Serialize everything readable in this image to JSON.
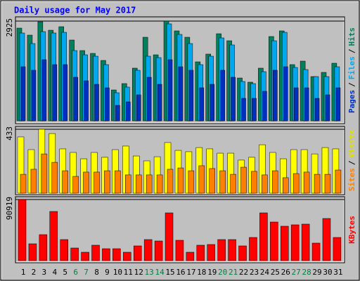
{
  "title": "Daily usage for May 2017",
  "categories": [
    "1",
    "2",
    "3",
    "4",
    "5",
    "6",
    "7",
    "8",
    "9",
    "10",
    "11",
    "12",
    "13",
    "14",
    "15",
    "16",
    "17",
    "18",
    "19",
    "20",
    "21",
    "22",
    "23",
    "24",
    "25",
    "26",
    "27",
    "28",
    "29",
    "30",
    "31"
  ],
  "category_colors": [
    "#000000",
    "#000000",
    "#000000",
    "#000000",
    "#000000",
    "#008040",
    "#008040",
    "#000000",
    "#000000",
    "#000000",
    "#000000",
    "#000000",
    "#008040",
    "#008040",
    "#000000",
    "#000000",
    "#000000",
    "#000000",
    "#000000",
    "#008040",
    "#008040",
    "#000000",
    "#000000",
    "#000000",
    "#000000",
    "#000000",
    "#008040",
    "#008040",
    "#000000",
    "#000000",
    "#000000"
  ],
  "chart_data": [
    {
      "type": "bar",
      "legend_separator": "/",
      "ylim": [
        0,
        2925
      ],
      "yticks": [
        2925
      ],
      "series": [
        {
          "name": "Hits",
          "color": "#00805c",
          "values": [
            2719,
            2513,
            2904,
            2657,
            2760,
            2369,
            2060,
            1977,
            1771,
            906,
            1092,
            1545,
            2451,
            1936,
            2925,
            2637,
            2451,
            1730,
            1957,
            2554,
            2348,
            1256,
            1133,
            1545,
            2472,
            2637,
            1648,
            1751,
            1298,
            1421,
            1689
          ]
        },
        {
          "name": "Files",
          "color": "#00a8f0",
          "values": [
            2575,
            2266,
            2616,
            2575,
            2595,
            2060,
            1936,
            1895,
            1648,
            824,
            989,
            1483,
            1895,
            1854,
            2843,
            2534,
            2266,
            1648,
            1895,
            2431,
            2225,
            1154,
            1092,
            1442,
            2348,
            2595,
            1565,
            1504,
            1298,
            1298,
            1586
          ]
        },
        {
          "name": "Pages",
          "color": "#0030c0",
          "values": [
            1586,
            1483,
            1792,
            1648,
            1648,
            1277,
            1174,
            1071,
            968,
            453,
            556,
            762,
            1277,
            1071,
            1792,
            1586,
            1483,
            968,
            1071,
            1483,
            1277,
            659,
            659,
            865,
            1483,
            1586,
            968,
            968,
            659,
            762,
            968
          ]
        }
      ]
    },
    {
      "type": "bar",
      "legend_separator": "/",
      "ylim": [
        0,
        433
      ],
      "yticks": [
        433
      ],
      "series": [
        {
          "name": "Visits",
          "color": "#ffff00",
          "values": [
            381,
            295,
            433,
            404,
            300,
            276,
            233,
            276,
            243,
            295,
            319,
            252,
            219,
            247,
            343,
            290,
            281,
            309,
            300,
            271,
            271,
            224,
            243,
            328,
            276,
            233,
            295,
            295,
            266,
            309,
            300
          ]
        },
        {
          "name": "Sites",
          "color": "#ff8000",
          "values": [
            128,
            162,
            266,
            209,
            152,
            114,
            143,
            143,
            152,
            152,
            124,
            124,
            124,
            124,
            162,
            171,
            152,
            186,
            167,
            152,
            128,
            176,
            148,
            124,
            152,
            105,
            133,
            143,
            128,
            128,
            157
          ]
        }
      ]
    },
    {
      "type": "bar",
      "ylim": [
        0,
        90919
      ],
      "yticks": [
        90919
      ],
      "series": [
        {
          "name": "KBytes",
          "color": "#ff0000",
          "values": [
            90919,
            25082,
            38668,
            73155,
            31352,
            18811,
            12541,
            22991,
            17766,
            17766,
            12541,
            21946,
            31352,
            29262,
            71065,
            30307,
            12541,
            22991,
            24037,
            31352,
            31352,
            21946,
            34487,
            71065,
            57479,
            51209,
            53299,
            54344,
            26127,
            62704,
            34487
          ]
        }
      ]
    }
  ]
}
